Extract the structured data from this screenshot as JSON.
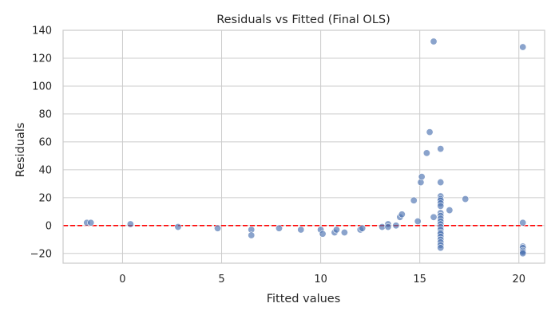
{
  "chart_data": {
    "type": "scatter",
    "title": "Residuals vs Fitted (Final OLS)",
    "xlabel": "Fitted values",
    "ylabel": "Residuals",
    "xlim": [
      -3.0,
      21.3
    ],
    "ylim": [
      -27,
      140
    ],
    "xticks": [
      0,
      5,
      10,
      15,
      20
    ],
    "yticks": [
      -20,
      0,
      20,
      40,
      60,
      80,
      100,
      120,
      140
    ],
    "grid": true,
    "point_color": "#4c72b0",
    "reference_line": {
      "y": 0,
      "color": "#ff0000",
      "style": "dashed"
    },
    "points": [
      [
        -1.8,
        2
      ],
      [
        -1.6,
        2
      ],
      [
        0.4,
        1
      ],
      [
        2.8,
        -1
      ],
      [
        4.8,
        -2
      ],
      [
        6.5,
        -3
      ],
      [
        6.5,
        -7
      ],
      [
        7.9,
        -2
      ],
      [
        9.0,
        -3
      ],
      [
        10.0,
        -3
      ],
      [
        10.1,
        -6
      ],
      [
        10.7,
        -5
      ],
      [
        10.8,
        -3
      ],
      [
        11.2,
        -5
      ],
      [
        12.0,
        -3
      ],
      [
        12.1,
        -2
      ],
      [
        13.1,
        -1
      ],
      [
        13.4,
        1
      ],
      [
        13.4,
        -1
      ],
      [
        13.8,
        0
      ],
      [
        14.0,
        6
      ],
      [
        14.1,
        8
      ],
      [
        14.7,
        18
      ],
      [
        14.9,
        3
      ],
      [
        15.05,
        31
      ],
      [
        15.1,
        35
      ],
      [
        15.35,
        52
      ],
      [
        15.5,
        67
      ],
      [
        15.7,
        132
      ],
      [
        15.7,
        6
      ],
      [
        16.05,
        55
      ],
      [
        16.05,
        31
      ],
      [
        16.05,
        21
      ],
      [
        16.05,
        19
      ],
      [
        16.05,
        18
      ],
      [
        16.05,
        16
      ],
      [
        16.05,
        14
      ],
      [
        16.05,
        9
      ],
      [
        16.05,
        7
      ],
      [
        16.05,
        5
      ],
      [
        16.05,
        3
      ],
      [
        16.05,
        1
      ],
      [
        16.05,
        -1
      ],
      [
        16.05,
        -3
      ],
      [
        16.05,
        -5
      ],
      [
        16.05,
        -6
      ],
      [
        16.05,
        -8
      ],
      [
        16.05,
        -10
      ],
      [
        16.05,
        -12
      ],
      [
        16.05,
        -14
      ],
      [
        16.05,
        -16
      ],
      [
        16.5,
        11
      ],
      [
        17.3,
        19
      ],
      [
        20.2,
        128
      ],
      [
        20.2,
        2
      ],
      [
        20.2,
        -15
      ],
      [
        20.2,
        -16
      ],
      [
        20.2,
        -18
      ],
      [
        20.2,
        -19
      ],
      [
        20.2,
        -20
      ]
    ]
  }
}
